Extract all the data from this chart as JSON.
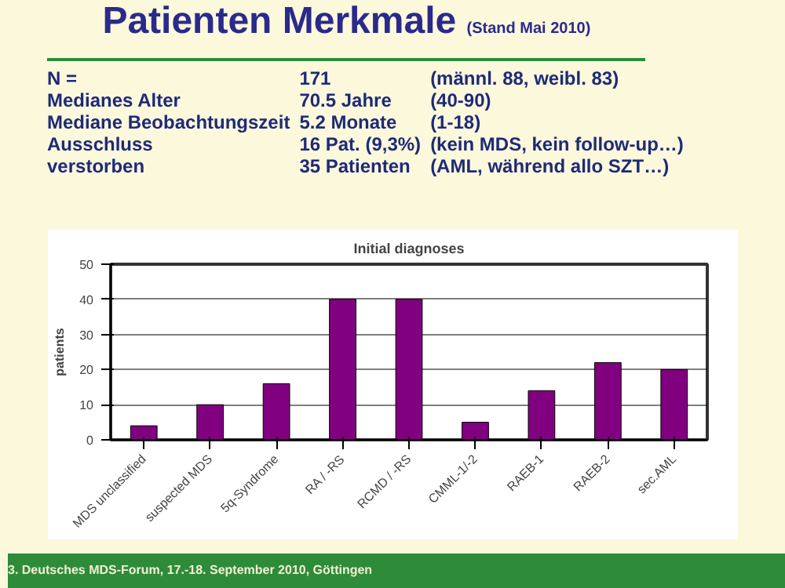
{
  "chart_data": {
    "type": "bar",
    "title": "Patienten Merkmale (Stand Mai 2010)",
    "subtitle": "Initial diagnoses",
    "ylabel": "patients",
    "categories": [
      "MDS unclassified",
      "suspected MDS",
      "5q-Syndrome",
      "RA / -RS",
      "RCMD / -RS",
      "CMML-1/-2",
      "RAEB-1",
      "RAEB-2",
      "sec.AML"
    ],
    "values": [
      4,
      10,
      16,
      40,
      40,
      5,
      14,
      22,
      20
    ],
    "color": "#800080",
    "ylim": [
      0,
      50
    ],
    "yticks": [
      0,
      10,
      20,
      30,
      40,
      50
    ],
    "grid": "y",
    "annotations": [
      "N =",
      "171",
      "(männl. 88, weibl. 83)",
      "Medianes Alter",
      "70.5 Jahre",
      "(40-90)",
      "Mediane Beobachtungszeit",
      "5.2 Monate",
      "(1-18)",
      "Ausschluss",
      "16 Pat. (9,3%)",
      "(kein MDS, kein follow-up…)",
      "verstorben",
      "35 Patienten",
      "(AML, während allo SZT…)",
      "3. Deutsches MDS-Forum, 17.-18. September 2010, Göttingen"
    ]
  }
}
